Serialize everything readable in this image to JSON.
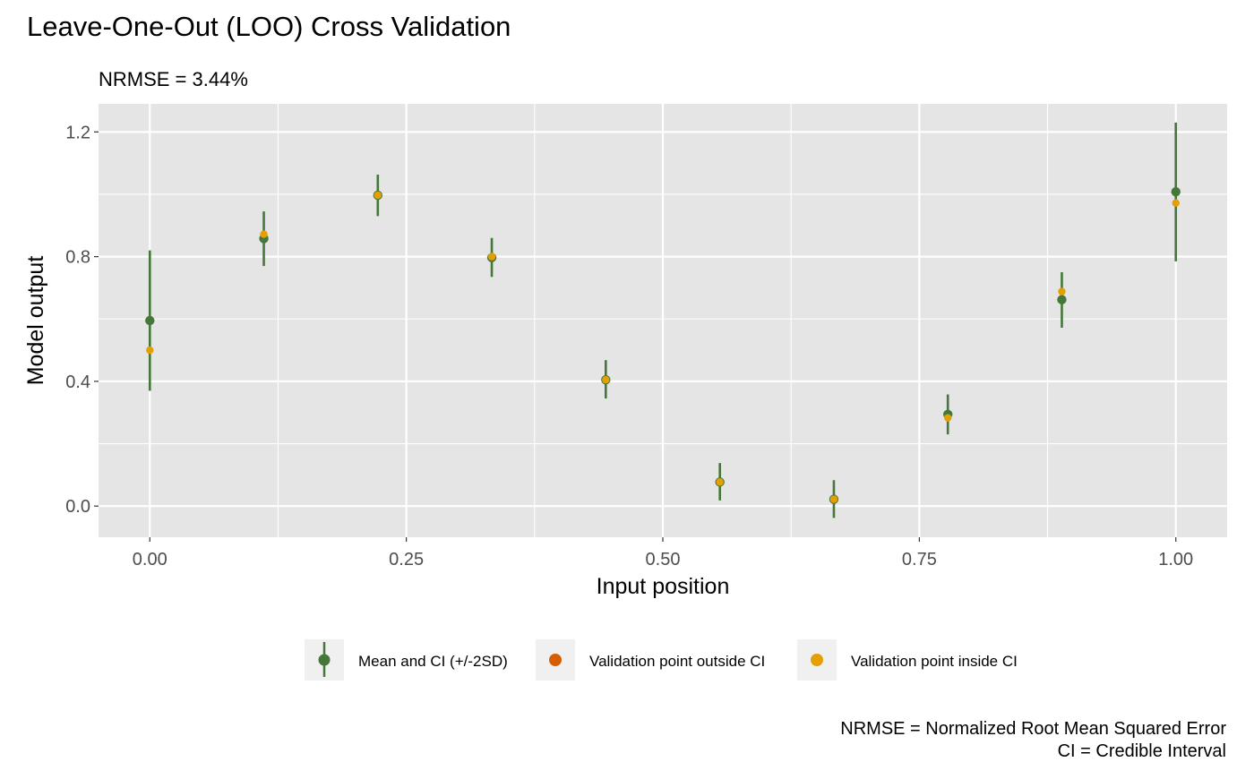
{
  "chart_data": {
    "type": "scatter",
    "title": "Leave-One-Out (LOO) Cross Validation",
    "subtitle": "NRMSE = 3.44%",
    "xlabel": "Input position",
    "ylabel": "Model output",
    "xlim": [
      -0.05,
      1.05
    ],
    "ylim": [
      -0.1,
      1.29
    ],
    "x_ticks": [
      0.0,
      0.25,
      0.5,
      0.75,
      1.0
    ],
    "x_tick_labels": [
      "0.00",
      "0.25",
      "0.50",
      "0.75",
      "1.00"
    ],
    "y_ticks": [
      0.0,
      0.4,
      0.8,
      1.2
    ],
    "y_tick_labels": [
      "0.0",
      "0.4",
      "0.8",
      "1.2"
    ],
    "grid": true,
    "legend_position": "bottom",
    "colors": {
      "panel_bg": "#E5E5E5",
      "grid": "#FFFFFF",
      "mean_ci": "#45773A",
      "outside_ci": "#D55E00",
      "inside_ci": "#E69F00",
      "legend_key_bg": "#F0F0F0",
      "text": "#000000",
      "tick_text": "#4D4D4D"
    },
    "x": [
      0.0,
      0.1111,
      0.2222,
      0.3333,
      0.4444,
      0.5556,
      0.6667,
      0.7778,
      0.8889,
      1.0
    ],
    "series": [
      {
        "name": "Mean and CI (+/-2SD)",
        "mean": [
          0.595,
          0.858,
          0.997,
          0.797,
          0.405,
          0.077,
          0.022,
          0.294,
          0.662,
          1.008
        ],
        "ci_lower": [
          0.37,
          0.77,
          0.93,
          0.735,
          0.345,
          0.018,
          -0.038,
          0.23,
          0.572,
          0.785
        ],
        "ci_upper": [
          0.82,
          0.945,
          1.063,
          0.86,
          0.468,
          0.138,
          0.083,
          0.358,
          0.75,
          1.23
        ]
      },
      {
        "name": "Validation point outside CI",
        "values": []
      },
      {
        "name": "Validation point inside CI",
        "values": [
          0.5,
          0.872,
          0.997,
          0.8,
          0.405,
          0.077,
          0.022,
          0.283,
          0.688,
          0.972
        ]
      }
    ],
    "caption_lines": [
      "NRMSE = Normalized Root Mean Squared Error",
      "CI = Credible Interval"
    ]
  }
}
